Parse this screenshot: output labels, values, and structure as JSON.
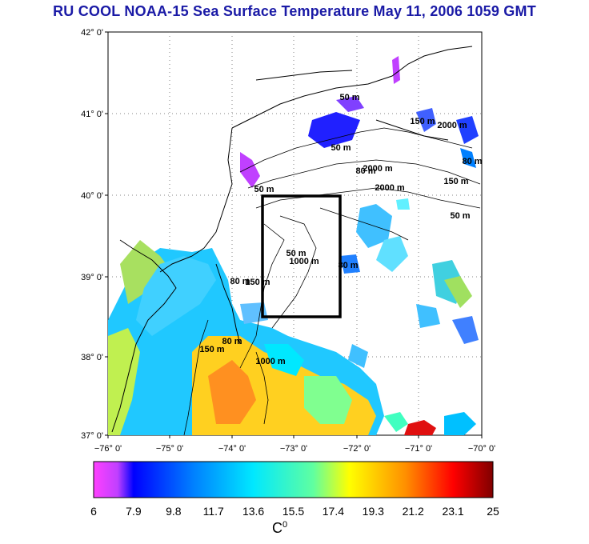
{
  "title": "RU COOL  NOAA-15 Sea Surface Temperature May 11, 2006 1059 GMT",
  "map": {
    "lat_ticks": [
      "42° 0'",
      "41° 0'",
      "40° 0'",
      "39° 0'",
      "38° 0'",
      "37° 0'"
    ],
    "lon_ticks": [
      "−76° 0'",
      "−75° 0'",
      "−74° 0'",
      "−73° 0'",
      "−72° 0'",
      "−71° 0'",
      "−70° 0'"
    ],
    "extent": {
      "lon_min": -76,
      "lon_max": -70,
      "lat_min": 37,
      "lat_max": 42
    },
    "study_box": {
      "lon_min": -73.5,
      "lon_max": -72.5,
      "lat_min": 38.5,
      "lat_max": 40.0
    },
    "contour_labels": [
      "50 m",
      "50 m",
      "80 m",
      "2000 m",
      "150 m",
      "2000 m",
      "80 m",
      "150 m",
      "2000 m",
      "50 m",
      "50 m",
      "80 m",
      "150 m",
      "1000 m",
      "80 m",
      "50 m",
      "150 m",
      "80 m",
      "1000 m"
    ]
  },
  "colorbar": {
    "ticks": [
      "6",
      "7.9",
      "9.8",
      "11.7",
      "13.6",
      "15.5",
      "17.4",
      "19.3",
      "21.2",
      "23.1",
      "25"
    ],
    "unit_label": "C",
    "unit_sup": "0",
    "range": [
      6,
      25
    ],
    "colors": [
      "#ff40ff",
      "#c040ff",
      "#0000ff",
      "#0080ff",
      "#00c0ff",
      "#00ffff",
      "#80ffa0",
      "#ffff00",
      "#ffa000",
      "#ff4000",
      "#ff0000",
      "#800000"
    ]
  }
}
